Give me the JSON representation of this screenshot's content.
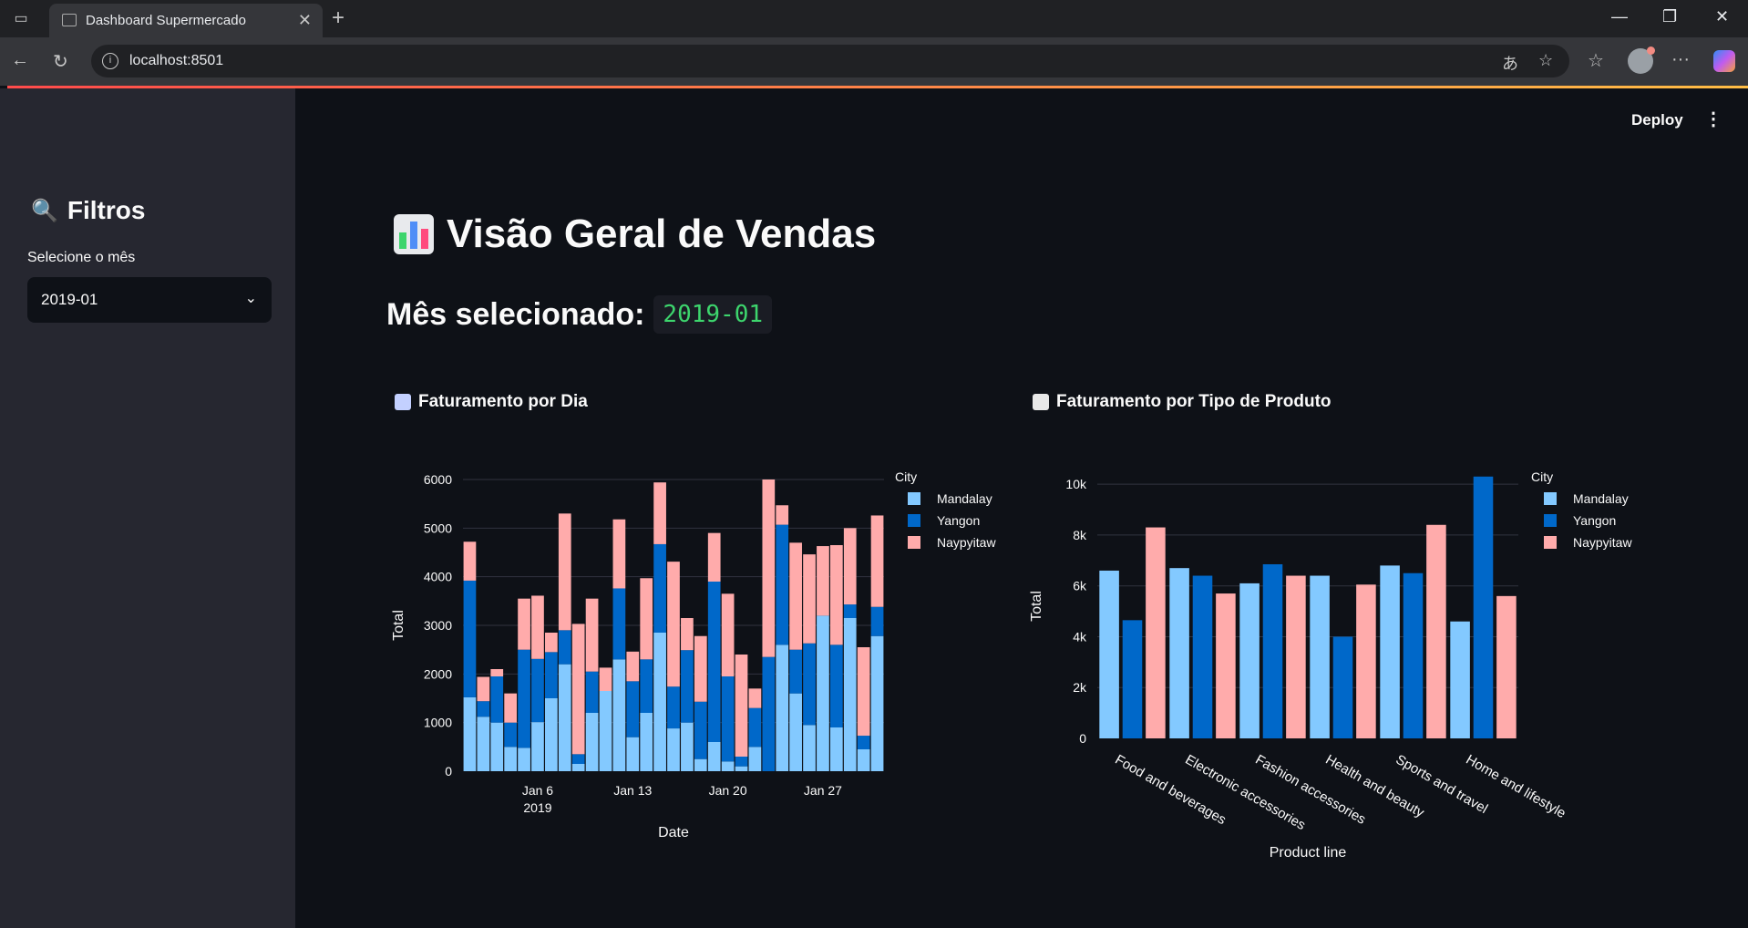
{
  "browser": {
    "tab_title": "Dashboard Supermercado",
    "url": "localhost:8501"
  },
  "app": {
    "deploy_label": "Deploy"
  },
  "sidebar": {
    "title": "Filtros",
    "select_label": "Selecione o mês",
    "selected_month": "2019-01"
  },
  "main": {
    "title": "Visão Geral de Vendas",
    "subtitle_label": "Mês selecionado:",
    "subtitle_value": "2019-01",
    "chart1_title": "Faturamento por Dia",
    "chart2_title": "Faturamento por Tipo de Produto"
  },
  "colors": {
    "Mandalay": "#83c9ff",
    "Yangon": "#0068c9",
    "Naypyitaw": "#ffabab"
  },
  "chart_data": [
    {
      "type": "bar",
      "stacked": true,
      "title": "",
      "xlabel": "Date",
      "ylabel": "Total",
      "legend_title": "City",
      "legend_position": "top-right",
      "ylim": [
        0,
        6000
      ],
      "yticks": [
        0,
        1000,
        2000,
        3000,
        4000,
        5000,
        6000
      ],
      "xticks": [
        {
          "label": "Jan 6",
          "sublabel": "2019",
          "day": 6
        },
        {
          "label": "Jan 13",
          "sublabel": "",
          "day": 13
        },
        {
          "label": "Jan 20",
          "sublabel": "",
          "day": 20
        },
        {
          "label": "Jan 27",
          "sublabel": "",
          "day": 27
        }
      ],
      "categories": [
        "2019-01-01",
        "2019-01-02",
        "2019-01-03",
        "2019-01-04",
        "2019-01-05",
        "2019-01-06",
        "2019-01-07",
        "2019-01-08",
        "2019-01-09",
        "2019-01-10",
        "2019-01-11",
        "2019-01-12",
        "2019-01-13",
        "2019-01-14",
        "2019-01-15",
        "2019-01-16",
        "2019-01-17",
        "2019-01-18",
        "2019-01-19",
        "2019-01-20",
        "2019-01-21",
        "2019-01-22",
        "2019-01-23",
        "2019-01-24",
        "2019-01-25",
        "2019-01-26",
        "2019-01-27",
        "2019-01-28",
        "2019-01-29",
        "2019-01-30",
        "2019-01-31"
      ],
      "series": [
        {
          "name": "Mandalay",
          "values": [
            1520,
            1120,
            1000,
            500,
            480,
            1010,
            1500,
            2200,
            150,
            1200,
            1650,
            2300,
            700,
            1200,
            2850,
            880,
            1000,
            250,
            600,
            200,
            100,
            500,
            0,
            2600,
            1600,
            950,
            3200,
            900,
            3150,
            450,
            2780
          ]
        },
        {
          "name": "Yangon",
          "values": [
            2400,
            320,
            950,
            500,
            2020,
            1300,
            950,
            700,
            200,
            850,
            0,
            1460,
            1150,
            1100,
            1820,
            860,
            1490,
            1180,
            3300,
            1750,
            200,
            800,
            2350,
            2470,
            900,
            1680,
            0,
            1700,
            280,
            280,
            600
          ]
        },
        {
          "name": "Naypyitaw",
          "values": [
            800,
            500,
            150,
            600,
            1050,
            1300,
            400,
            2400,
            2680,
            1500,
            480,
            1420,
            610,
            1670,
            1270,
            2570,
            660,
            1350,
            1000,
            1700,
            2100,
            400,
            3650,
            400,
            2200,
            1830,
            1430,
            2050,
            1570,
            1820,
            1880
          ]
        }
      ]
    },
    {
      "type": "bar",
      "grouped": true,
      "title": "",
      "xlabel": "Product line",
      "ylabel": "Total",
      "legend_title": "City",
      "legend_position": "top-right",
      "ylim": [
        0,
        10400
      ],
      "yticks": [
        {
          "v": 0,
          "label": "0"
        },
        {
          "v": 2000,
          "label": "2k"
        },
        {
          "v": 4000,
          "label": "4k"
        },
        {
          "v": 6000,
          "label": "6k"
        },
        {
          "v": 8000,
          "label": "8k"
        },
        {
          "v": 10000,
          "label": "10k"
        }
      ],
      "categories": [
        "Food and beverages",
        "Electronic accessories",
        "Fashion accessories",
        "Health and beauty",
        "Sports and travel",
        "Home and lifestyle"
      ],
      "series": [
        {
          "name": "Mandalay",
          "values": [
            6600,
            6700,
            6100,
            6400,
            6800,
            4600
          ]
        },
        {
          "name": "Yangon",
          "values": [
            4650,
            6400,
            6850,
            4000,
            6500,
            10300
          ]
        },
        {
          "name": "Naypyitaw",
          "values": [
            8300,
            5700,
            6400,
            6050,
            8400,
            5600
          ]
        }
      ]
    }
  ]
}
